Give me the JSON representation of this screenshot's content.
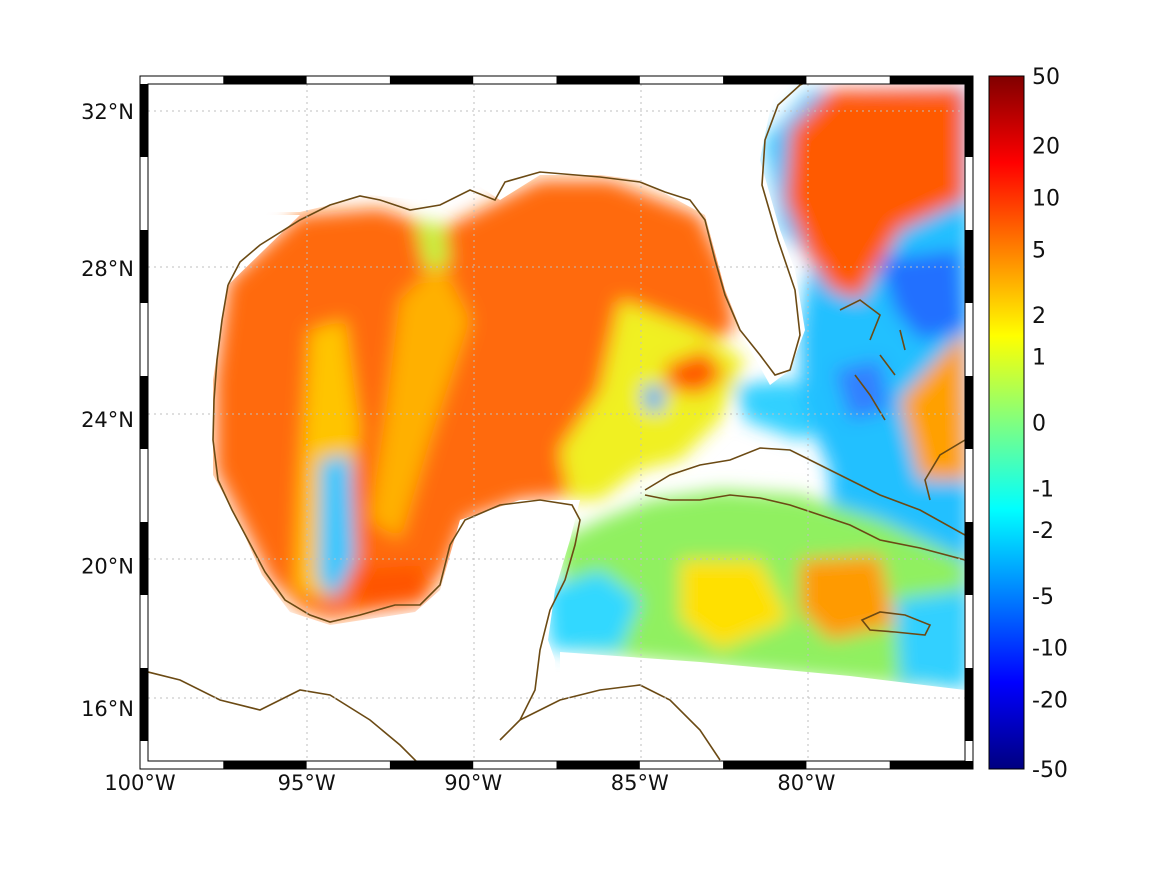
{
  "map": {
    "region": "Gulf of Mexico and Caribbean",
    "lon_range": [
      -100,
      -75
    ],
    "lat_range": [
      14.3,
      32.9
    ],
    "lon_ticks": [
      {
        "lon": -100,
        "label": "100°W"
      },
      {
        "lon": -95,
        "label": "95°W"
      },
      {
        "lon": -90,
        "label": "90°W"
      },
      {
        "lon": -85,
        "label": "85°W"
      },
      {
        "lon": -80,
        "label": "80°W"
      }
    ],
    "lat_ticks": [
      {
        "lat": 32,
        "label": "32°N"
      },
      {
        "lat": 28,
        "label": "28°N"
      },
      {
        "lat": 24,
        "label": "24°N"
      },
      {
        "lat": 20,
        "label": "20°N"
      },
      {
        "lat": 16,
        "label": "16°N"
      }
    ],
    "grid": true,
    "coastline_color": "#6b4a14",
    "frame_style": "alternating black/white border"
  },
  "colorbar": {
    "placement": "right",
    "colormap": "jet",
    "labels": [
      "50",
      "20",
      "10",
      "5",
      "2",
      "1",
      "0",
      "-1",
      "-2",
      "-5",
      "-10",
      "-20",
      "-50"
    ],
    "label_fraction": [
      0.0,
      0.1,
      0.175,
      0.25,
      0.345,
      0.405,
      0.5,
      0.595,
      0.655,
      0.75,
      0.825,
      0.9,
      1.0
    ]
  }
}
